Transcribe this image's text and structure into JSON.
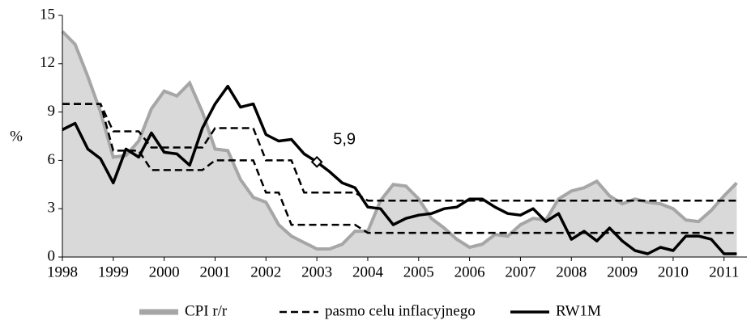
{
  "chart_data": {
    "type": "line",
    "ylabel": "%",
    "x": [
      1998,
      1998.25,
      1998.5,
      1998.75,
      1999,
      1999.25,
      1999.5,
      1999.75,
      2000,
      2000.25,
      2000.5,
      2000.75,
      2001,
      2001.25,
      2001.5,
      2001.75,
      2002,
      2002.25,
      2002.5,
      2002.75,
      2003,
      2003.25,
      2003.5,
      2003.75,
      2004,
      2004.25,
      2004.5,
      2004.75,
      2005,
      2005.25,
      2005.5,
      2005.75,
      2006,
      2006.25,
      2006.5,
      2006.75,
      2007,
      2007.25,
      2007.5,
      2007.75,
      2008,
      2008.25,
      2008.5,
      2008.75,
      2009,
      2009.25,
      2009.5,
      2009.75,
      2010,
      2010.25,
      2010.5,
      2010.75,
      2011,
      2011.25
    ],
    "series": [
      {
        "name": "CPI r/r",
        "color": "#a6a6a6",
        "fill": "#d9d9d9",
        "style": "area",
        "values": [
          14,
          13.2,
          11.2,
          9.0,
          6.2,
          6.3,
          7.2,
          9.2,
          10.3,
          10.0,
          10.8,
          9.0,
          6.7,
          6.6,
          4.8,
          3.7,
          3.4,
          2.0,
          1.3,
          0.9,
          0.5,
          0.5,
          0.8,
          1.6,
          1.6,
          3.5,
          4.5,
          4.4,
          3.6,
          2.4,
          1.8,
          1.1,
          0.6,
          0.8,
          1.4,
          1.3,
          2.0,
          2.4,
          2.3,
          3.6,
          4.1,
          4.3,
          4.7,
          3.8,
          3.3,
          3.6,
          3.4,
          3.3,
          3.0,
          2.3,
          2.2,
          2.9,
          3.8,
          4.6
        ]
      },
      {
        "name": "pasmo celu inflacyjnego",
        "color": "#000000",
        "style": "dashed",
        "values": [
          9.5,
          9.5,
          9.5,
          9.5,
          7.8,
          7.8,
          7.8,
          6.8,
          6.8,
          6.8,
          6.8,
          6.8,
          8,
          8,
          8,
          8,
          6,
          6,
          6,
          4,
          4,
          4,
          4,
          4,
          3.5,
          3.5,
          3.5,
          3.5,
          3.5,
          3.5,
          3.5,
          3.5,
          3.5,
          3.5,
          3.5,
          3.5,
          3.5,
          3.5,
          3.5,
          3.5,
          3.5,
          3.5,
          3.5,
          3.5,
          3.5,
          3.5,
          3.5,
          3.5,
          3.5,
          3.5,
          3.5,
          3.5,
          3.5,
          3.5
        ]
      },
      {
        "color": "#000000",
        "style": "dashed",
        "values": [
          9.5,
          9.5,
          9.5,
          9.5,
          6.6,
          6.6,
          6.6,
          5.4,
          5.4,
          5.4,
          5.4,
          5.4,
          6,
          6,
          6,
          6,
          4,
          4,
          2,
          2,
          2,
          2,
          2,
          2,
          1.5,
          1.5,
          1.5,
          1.5,
          1.5,
          1.5,
          1.5,
          1.5,
          1.5,
          1.5,
          1.5,
          1.5,
          1.5,
          1.5,
          1.5,
          1.5,
          1.5,
          1.5,
          1.5,
          1.5,
          1.5,
          1.5,
          1.5,
          1.5,
          1.5,
          1.5,
          1.5,
          1.5,
          1.5,
          1.5
        ]
      },
      {
        "name": "RW1M",
        "color": "#000000",
        "style": "solid",
        "values": [
          7.9,
          8.3,
          6.7,
          6.1,
          4.6,
          6.7,
          6.2,
          7.7,
          6.5,
          6.4,
          5.7,
          8.0,
          9.5,
          10.6,
          9.3,
          9.5,
          7.6,
          7.2,
          7.3,
          6.4,
          5.9,
          5.3,
          4.6,
          4.3,
          3.1,
          3.0,
          2.0,
          2.4,
          2.6,
          2.7,
          3.0,
          3.1,
          3.6,
          3.6,
          3.1,
          2.7,
          2.6,
          3.0,
          2.2,
          2.7,
          1.1,
          1.6,
          1.0,
          1.8,
          1.0,
          0.4,
          0.2,
          0.6,
          0.4,
          1.3,
          1.3,
          1.1,
          0.2,
          0.2
        ]
      }
    ],
    "annotation": {
      "label": "5,9",
      "x": 2003,
      "value": 5.9
    },
    "xlim": [
      1998,
      2011.45
    ],
    "xticks": [
      1998,
      1999,
      2000,
      2001,
      2002,
      2003,
      2004,
      2005,
      2006,
      2007,
      2008,
      2009,
      2010,
      2011
    ],
    "ylim": [
      0,
      15
    ],
    "yticks": [
      0,
      3,
      6,
      9,
      12,
      15
    ],
    "legend": "bottom"
  }
}
